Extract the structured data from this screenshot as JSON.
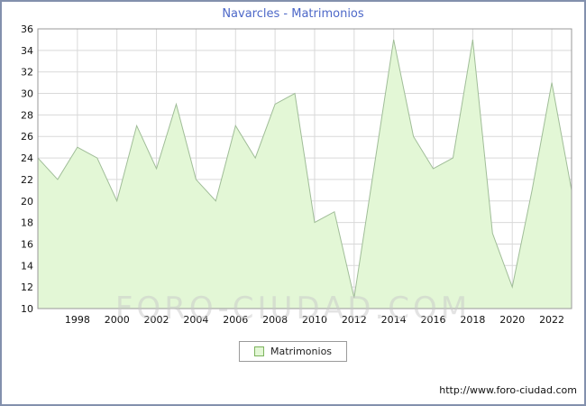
{
  "title": "Navarcles - Matrimonios",
  "watermark": "FORO-CIUDAD.COM",
  "footer_url": "http://www.foro-ciudad.com",
  "legend": {
    "label": "Matrimonios"
  },
  "colors": {
    "title_text": "#4d68c8",
    "area_fill": "#e3f7d6",
    "area_line": "#a0bd98",
    "grid": "#d9d9d9",
    "plot_border": "#999999",
    "axis_text": "#111111",
    "legend_swatch_border": "#7cb35c"
  },
  "chart_data": {
    "type": "area",
    "title": "Navarcles - Matrimonios",
    "x": [
      1996,
      1997,
      1998,
      1999,
      2000,
      2001,
      2002,
      2003,
      2004,
      2005,
      2006,
      2007,
      2008,
      2009,
      2010,
      2011,
      2012,
      2013,
      2014,
      2015,
      2016,
      2017,
      2018,
      2019,
      2020,
      2021,
      2022,
      2023
    ],
    "series": [
      {
        "name": "Matrimonios",
        "values": [
          24,
          22,
          25,
          24,
          20,
          27,
          23,
          29,
          22,
          20,
          27,
          24,
          29,
          30,
          18,
          19,
          11,
          23,
          35,
          26,
          23,
          24,
          35,
          17,
          12,
          21,
          31,
          21
        ]
      }
    ],
    "ylim": [
      10,
      36
    ],
    "ytick_step": 2,
    "xticks": [
      1998,
      2000,
      2002,
      2004,
      2006,
      2008,
      2010,
      2012,
      2014,
      2016,
      2018,
      2020,
      2022
    ],
    "grid": true,
    "legend_position": "bottom"
  }
}
